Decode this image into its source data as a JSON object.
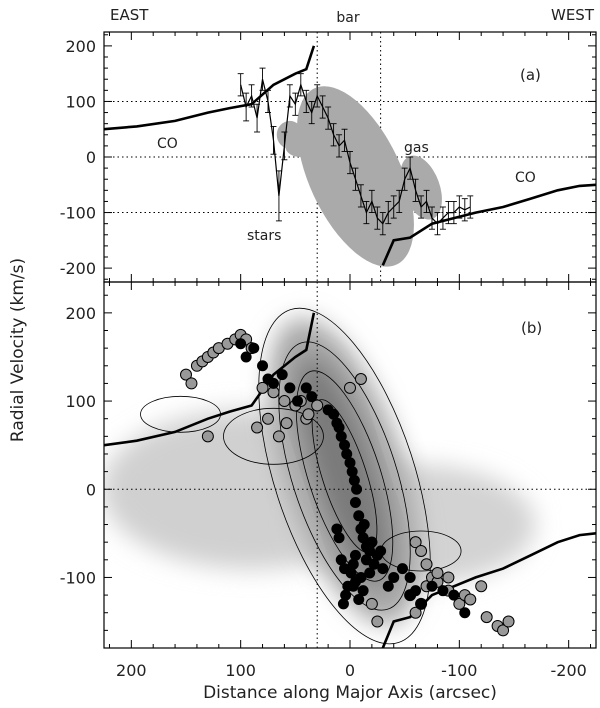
{
  "labels": {
    "east": "EAST",
    "west": "WEST",
    "bar": "bar",
    "panel_a": "(a)",
    "panel_b": "(b)",
    "co_left": "CO",
    "co_right": "CO",
    "stars": "stars",
    "gas": "gas"
  },
  "chart_data": [
    {
      "type": "line",
      "panel": "a",
      "title": "",
      "xlabel": "Distance along Major Axis (arcsec)",
      "ylabel": "Radial Velocity (km/s)",
      "xlim": [
        225,
        -225
      ],
      "ylim": [
        -225,
        225
      ],
      "x_ticks": [
        200,
        100,
        0,
        -100,
        -200
      ],
      "y_ticks": [
        200,
        100,
        0,
        -100,
        -200
      ],
      "dotted_vlines": [
        30,
        -28
      ],
      "dotted_hlines": [
        100,
        0,
        -100
      ],
      "series": [
        {
          "name": "CO",
          "kind": "thick-line",
          "segments": [
            {
              "x": [
                225,
                195,
                160,
                130,
                110,
                90,
                70,
                50,
                40,
                33
              ],
              "y": [
                50,
                55,
                65,
                80,
                88,
                95,
                130,
                150,
                158,
                200
              ]
            },
            {
              "x": [
                -30,
                -40,
                -55,
                -75,
                -95,
                -115,
                -140,
                -165,
                -190,
                -210,
                -225
              ],
              "y": [
                -195,
                -150,
                -145,
                -120,
                -110,
                -100,
                -90,
                -75,
                -60,
                -52,
                -50
              ]
            }
          ]
        },
        {
          "name": "stars",
          "kind": "line-with-errorbars",
          "x": [
            100,
            95,
            90,
            85,
            80,
            75,
            70,
            65,
            60,
            55,
            50,
            45,
            40,
            35,
            30,
            25,
            20,
            15,
            10,
            5,
            0,
            -5,
            -10,
            -15,
            -20,
            -25,
            -30,
            -35,
            -40,
            -45,
            -50,
            -55,
            -60,
            -65,
            -70,
            -75,
            -80,
            -85,
            -90,
            -95,
            -100,
            -105,
            -110
          ],
          "y": [
            130,
            90,
            110,
            70,
            140,
            100,
            30,
            -70,
            20,
            110,
            95,
            130,
            100,
            80,
            110,
            90,
            70,
            40,
            20,
            30,
            -10,
            -40,
            -70,
            -100,
            -80,
            -110,
            -120,
            -100,
            -90,
            -80,
            -40,
            -20,
            -60,
            -90,
            -80,
            -110,
            -120,
            -110,
            -100,
            -100,
            -90,
            -95,
            -90
          ],
          "err": [
            20,
            25,
            20,
            25,
            20,
            20,
            25,
            45,
            25,
            20,
            20,
            20,
            20,
            20,
            20,
            20,
            20,
            20,
            20,
            20,
            20,
            20,
            20,
            20,
            20,
            20,
            20,
            20,
            20,
            20,
            20,
            20,
            20,
            20,
            20,
            20,
            20,
            20,
            20,
            20,
            20,
            20,
            20
          ]
        },
        {
          "name": "gas",
          "kind": "ellipses",
          "ellipses": [
            {
              "cx": -5,
              "cy": -35,
              "rx": 42,
              "ry": 175,
              "angle": 25,
              "color": "#aaaaaa"
            },
            {
              "cx": 55,
              "cy": 40,
              "rx": 12,
              "ry": 25,
              "angle": 0,
              "color": "#aaaaaa"
            },
            {
              "cx": 45,
              "cy": 18,
              "rx": 14,
              "ry": 18,
              "angle": 0,
              "color": "#aaaaaa"
            },
            {
              "cx": -65,
              "cy": -55,
              "rx": 17,
              "ry": 60,
              "angle": 20,
              "color": "#aaaaaa"
            }
          ]
        }
      ]
    },
    {
      "type": "scatter",
      "panel": "b",
      "title": "",
      "xlabel": "Distance along Major Axis (arcsec)",
      "ylabel": "Radial Velocity (km/s)",
      "xlim": [
        225,
        -225
      ],
      "ylim": [
        -180,
        235
      ],
      "x_ticks": [
        200,
        100,
        0,
        -100,
        -200
      ],
      "y_ticks": [
        200,
        100,
        0,
        -100
      ],
      "dotted_vlines": [
        30
      ],
      "dotted_hlines": [
        0
      ],
      "background": "grayscale intensity map with contours",
      "series": [
        {
          "name": "CO",
          "kind": "thick-line",
          "segments": [
            {
              "x": [
                225,
                195,
                160,
                130,
                110,
                90,
                70,
                50,
                40,
                33
              ],
              "y": [
                50,
                55,
                65,
                80,
                88,
                95,
                130,
                150,
                158,
                200
              ]
            },
            {
              "x": [
                -30,
                -40,
                -55,
                -75,
                -95,
                -115,
                -140,
                -165,
                -190,
                -210,
                -225
              ],
              "y": [
                -180,
                -150,
                -145,
                -120,
                -110,
                -100,
                -90,
                -75,
                -60,
                -52,
                -50
              ]
            }
          ]
        },
        {
          "name": "black",
          "color": "#000000",
          "x": [
            100,
            95,
            88,
            80,
            75,
            70,
            62,
            55,
            48,
            40,
            35,
            20,
            15,
            12,
            10,
            8,
            5,
            3,
            0,
            -2,
            -4,
            -6,
            -5,
            -8,
            -10,
            -12,
            -15,
            -18,
            -20,
            -5,
            -3,
            -1,
            2,
            4,
            6,
            5,
            8,
            10,
            12,
            -13,
            -20,
            -15,
            -25,
            -30,
            -10,
            -5,
            -3,
            -8,
            -12,
            -18,
            -22,
            -28,
            -35,
            -40,
            -55,
            -60,
            -65,
            -48,
            -55,
            -75,
            -85,
            -95,
            -105
          ],
          "y": [
            165,
            150,
            160,
            140,
            125,
            120,
            130,
            115,
            100,
            115,
            105,
            90,
            85,
            75,
            70,
            60,
            50,
            40,
            30,
            20,
            10,
            0,
            -15,
            -30,
            -45,
            -55,
            -65,
            -70,
            -60,
            -75,
            -85,
            -95,
            -110,
            -120,
            -130,
            -90,
            -80,
            -55,
            -45,
            -40,
            -60,
            -80,
            -75,
            -90,
            -100,
            -105,
            -110,
            -125,
            -115,
            -95,
            -85,
            -70,
            -110,
            -100,
            -120,
            -115,
            -130,
            -90,
            -100,
            -110,
            -115,
            -120,
            -140
          ]
        },
        {
          "name": "gray",
          "color": "#999999",
          "x": [
            150,
            145,
            140,
            135,
            130,
            125,
            120,
            112,
            105,
            100,
            95,
            90,
            80,
            70,
            60,
            50,
            40,
            130,
            85,
            75,
            65,
            58,
            45,
            38,
            30,
            0,
            -10,
            -55,
            -60,
            -65,
            -70,
            -75,
            -80,
            -90,
            -100,
            -105,
            -110,
            -120,
            -125,
            -135,
            -140,
            -145,
            -70,
            -80,
            -90,
            -20,
            -25,
            -60,
            -65
          ],
          "y": [
            130,
            120,
            140,
            145,
            150,
            155,
            160,
            165,
            170,
            175,
            170,
            160,
            115,
            110,
            100,
            95,
            80,
            60,
            70,
            80,
            60,
            75,
            100,
            85,
            95,
            115,
            125,
            -120,
            -140,
            -130,
            -110,
            -100,
            -105,
            -115,
            -130,
            -120,
            -125,
            -110,
            -145,
            -155,
            -160,
            -150,
            -85,
            -95,
            -100,
            -130,
            -150,
            -60,
            -70
          ]
        }
      ]
    }
  ]
}
